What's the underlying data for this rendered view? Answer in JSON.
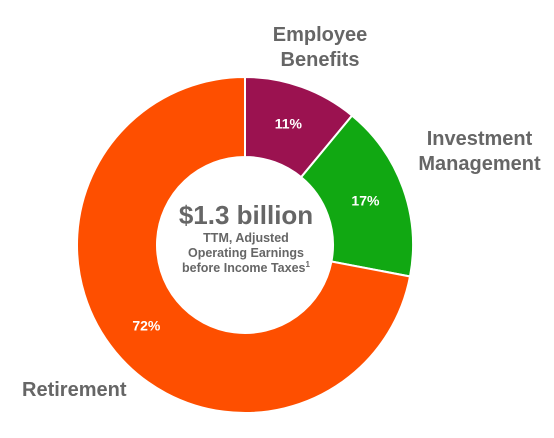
{
  "chart_data": {
    "type": "pie",
    "donut": true,
    "center": {
      "value": "$1.3 billion",
      "caption_lines": [
        "TTM, Adjusted",
        "Operating Earnings",
        "before Income Taxes"
      ],
      "footnote": "1"
    },
    "slices": [
      {
        "label_lines": [
          "Employee",
          "Benefits"
        ],
        "value": 11,
        "display": "11%",
        "color": "#9b1250"
      },
      {
        "label_lines": [
          "Investment",
          "Management"
        ],
        "value": 17,
        "display": "17%",
        "color": "#11a812"
      },
      {
        "label_lines": [
          "Retirement"
        ],
        "value": 72,
        "display": "72%",
        "color": "#fe4f00"
      }
    ],
    "legend": "none"
  }
}
